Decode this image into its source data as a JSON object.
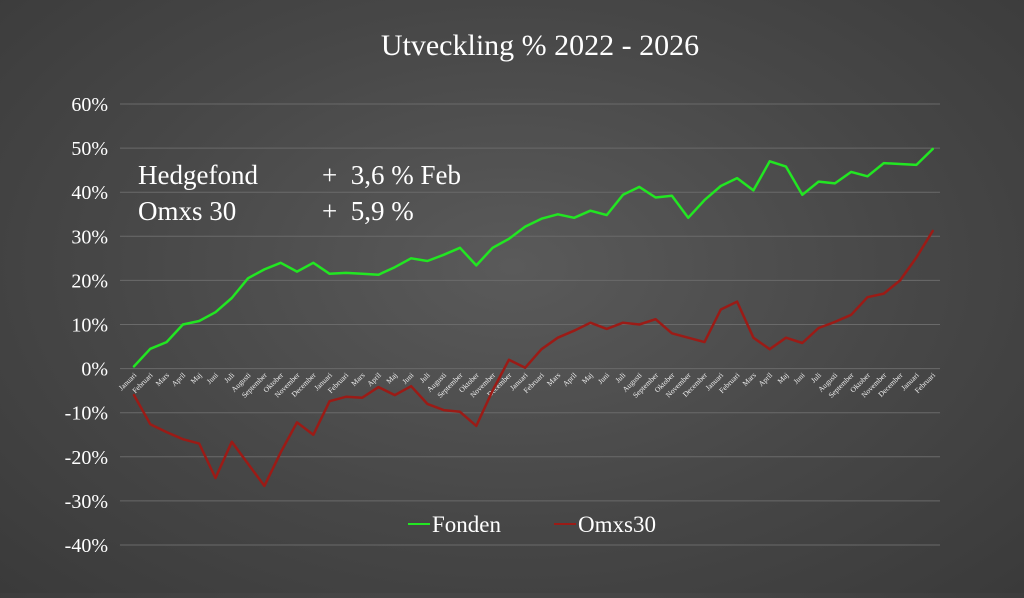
{
  "chart_data": {
    "type": "line",
    "title": "Utveckling % 2022 - 2026",
    "xlabel": "",
    "ylabel": "",
    "ylim": [
      -40,
      60
    ],
    "yticks": [
      "-40%",
      "-30%",
      "-20%",
      "-10%",
      "0%",
      "10%",
      "20%",
      "30%",
      "40%",
      "50%",
      "60%"
    ],
    "grid": true,
    "legend_position": "bottom",
    "categories": [
      "Januari",
      "Februari",
      "Mars",
      "April",
      "Maj",
      "Juni",
      "Juli",
      "Augusti",
      "September",
      "Oktober",
      "November",
      "December",
      "Januari",
      "Februari",
      "Mars",
      "April",
      "Maj",
      "Juni",
      "Juli",
      "Augusti",
      "September",
      "Oktober",
      "November",
      "December",
      "Januari",
      "Februari",
      "Mars",
      "April",
      "Maj",
      "Juni",
      "Juli",
      "Augusti",
      "September",
      "Oktober",
      "November",
      "December",
      "Januari",
      "Februari",
      "Mars",
      "April",
      "Maj",
      "Juni",
      "Juli",
      "Augusti",
      "September",
      "Oktober",
      "November",
      "December",
      "Januari",
      "Februari"
    ],
    "series": [
      {
        "name": "Fonden",
        "color": "#22e622",
        "values": [
          0.5,
          4.5,
          6,
          10,
          10.8,
          12.8,
          16,
          20.5,
          22.5,
          24,
          22,
          24,
          21.5,
          21.7,
          21.5,
          21.3,
          23,
          25,
          24.4,
          25.8,
          27.4,
          23.4,
          27.4,
          29.4,
          32.2,
          34,
          35,
          34.2,
          35.8,
          34.8,
          39.4,
          41.2,
          38.8,
          39.2,
          34.2,
          38.2,
          41.4,
          43.2,
          40.4,
          47,
          45.8,
          39.4,
          42.4,
          42,
          44.6,
          43.6,
          46.6,
          46.4,
          46.2,
          49.8
        ]
      },
      {
        "name": "Omxs30",
        "color": "#9b1b16",
        "values": [
          -6,
          -12.6,
          -14.4,
          -16,
          -17,
          -24.8,
          -16.6,
          -21.6,
          -26.6,
          -19,
          -12.2,
          -15,
          -7.4,
          -6.4,
          -6.6,
          -4.2,
          -6,
          -4,
          -8,
          -9.4,
          -9.8,
          -13,
          -5,
          2,
          0.2,
          4.4,
          7,
          8.6,
          10.4,
          9,
          10.4,
          10,
          11.2,
          8,
          7,
          6,
          13.4,
          15.2,
          7,
          4.4,
          7,
          5.8,
          9.2,
          10.6,
          12.2,
          16.2,
          17,
          20,
          25.2,
          31.2
        ]
      }
    ],
    "annotations": [
      {
        "label": "Hedgefond",
        "value": "+  3,6 % Feb"
      },
      {
        "label": "Omxs 30",
        "value": "+  5,9 %"
      }
    ]
  }
}
